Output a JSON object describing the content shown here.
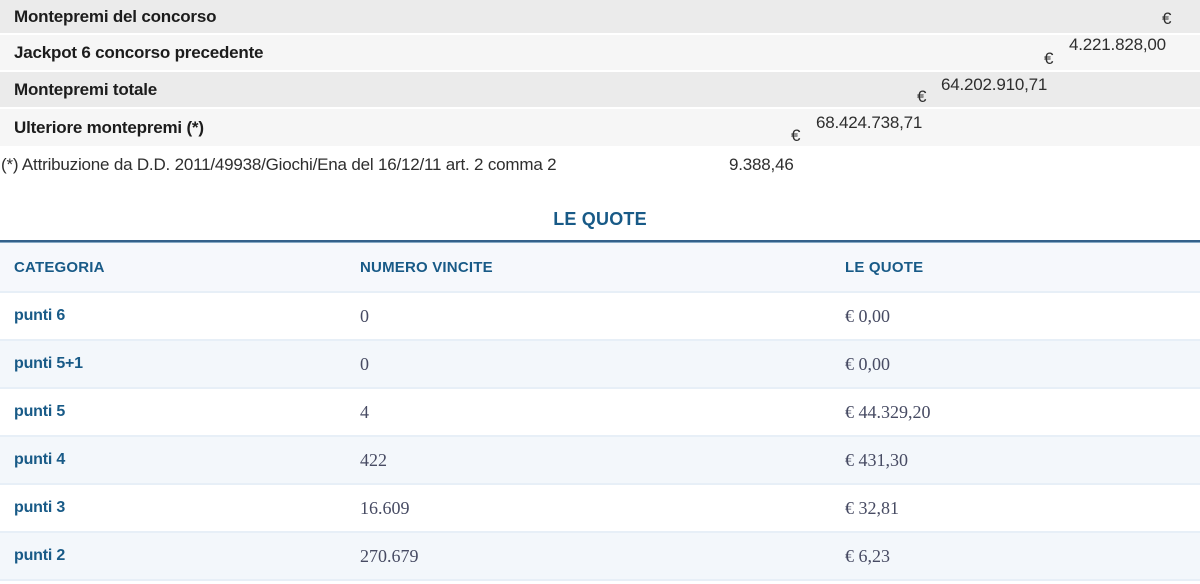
{
  "summary": {
    "currency_symbol": "€",
    "rows": [
      {
        "label": "Montepremi del concorso",
        "value": "4.221.828,00"
      },
      {
        "label": "Jackpot 6 concorso precedente",
        "value": "64.202.910,71"
      },
      {
        "label": "Montepremi totale",
        "value": "68.424.738,71"
      },
      {
        "label": "Ulteriore montepremi (*)",
        "value": "9.388,46"
      }
    ],
    "footnote": "(*) Attribuzione da D.D. 2011/49938/Giochi/Ena del 16/12/11 art. 2 comma 2"
  },
  "quotes": {
    "title": "LE QUOTE",
    "headers": {
      "category": "CATEGORIA",
      "wins": "NUMERO VINCITE",
      "quota": "LE QUOTE"
    },
    "rows": [
      {
        "category": "punti 6",
        "numero_vincite": "0",
        "quota": "€ 0,00"
      },
      {
        "category": "punti 5+1",
        "numero_vincite": "0",
        "quota": "€ 0,00"
      },
      {
        "category": "punti 5",
        "numero_vincite": "4",
        "quota": "€ 44.329,20"
      },
      {
        "category": "punti 4",
        "numero_vincite": "422",
        "quota": "€ 431,30"
      },
      {
        "category": "punti 3",
        "numero_vincite": "16.609",
        "quota": "€ 32,81"
      },
      {
        "category": "punti 2",
        "numero_vincite": "270.679",
        "quota": "€ 6,23"
      }
    ]
  },
  "colors": {
    "accent_blue": "#185a87",
    "rule_blue": "#34618a",
    "band_dark": "#ebebeb",
    "band_light": "#f6f6f6",
    "row_alt_blue": "#f3f7fb",
    "header_bg": "#f6f8fc",
    "serif_value_text": "#474b63",
    "body_text": "#2e2e2e"
  }
}
